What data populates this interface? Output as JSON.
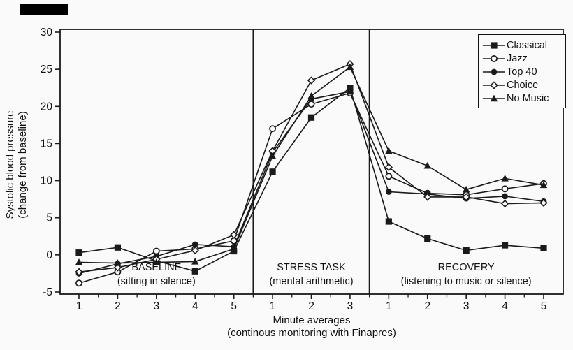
{
  "figure_title": "",
  "axes": {
    "y_title_line1": "Systolic blood pressure",
    "y_title_line2": "(change from baseline)",
    "x_title_line1": "Minute averages",
    "x_title_line2": "(continous monitoring with Finapres)"
  },
  "chart_data": {
    "type": "line",
    "title": "",
    "ylabel": "Systolic blood pressure (change from baseline)",
    "xlabel": "Minute averages (continous monitoring with Finapres)",
    "ylim": [
      -5,
      30
    ],
    "yticks": [
      -5,
      0,
      5,
      10,
      15,
      20,
      25,
      30
    ],
    "grid": false,
    "legend_position": "top-right",
    "line_color": "#1a1a1a",
    "background_color": "#fafafa",
    "x_tick_labels": [
      "1",
      "2",
      "3",
      "4",
      "5",
      "1",
      "2",
      "3",
      "1",
      "2",
      "3",
      "4",
      "5"
    ],
    "sections": [
      {
        "label": "BASELINE",
        "sublabel": "(sitting in silence)",
        "slots": [
          0,
          4
        ]
      },
      {
        "label": "STRESS TASK",
        "sublabel": "(mental arithmetic)",
        "slots": [
          5,
          7
        ]
      },
      {
        "label": "RECOVERY",
        "sublabel": "(listening to music or silence)",
        "slots": [
          8,
          12
        ]
      }
    ],
    "series": [
      {
        "name": "Classical",
        "marker": "square-filled",
        "values": [
          0.3,
          1.0,
          -0.8,
          -2.2,
          0.5,
          11.2,
          18.5,
          22.5,
          4.5,
          2.2,
          0.6,
          1.3,
          0.9
        ]
      },
      {
        "name": "Jazz",
        "marker": "circle-open",
        "values": [
          -3.8,
          -2.3,
          0.5,
          0.8,
          1.9,
          17.0,
          20.3,
          21.8,
          10.6,
          8.3,
          8.1,
          8.9,
          9.6
        ]
      },
      {
        "name": "Top 40",
        "marker": "circle-filled",
        "values": [
          -2.5,
          -1.2,
          -0.2,
          1.4,
          1.1,
          13.8,
          21.0,
          22.0,
          8.5,
          8.2,
          7.6,
          7.9,
          7.2
        ]
      },
      {
        "name": "Choice",
        "marker": "diamond-open",
        "values": [
          -2.3,
          -1.7,
          -0.6,
          0.6,
          2.7,
          14.0,
          23.5,
          25.7,
          11.8,
          7.8,
          7.8,
          6.9,
          7.0
        ]
      },
      {
        "name": "No Music",
        "marker": "triangle-filled",
        "values": [
          -1.0,
          -1.1,
          -1.0,
          -0.9,
          0.8,
          13.3,
          21.4,
          25.3,
          14.0,
          12.0,
          8.8,
          10.3,
          9.4
        ]
      }
    ]
  }
}
